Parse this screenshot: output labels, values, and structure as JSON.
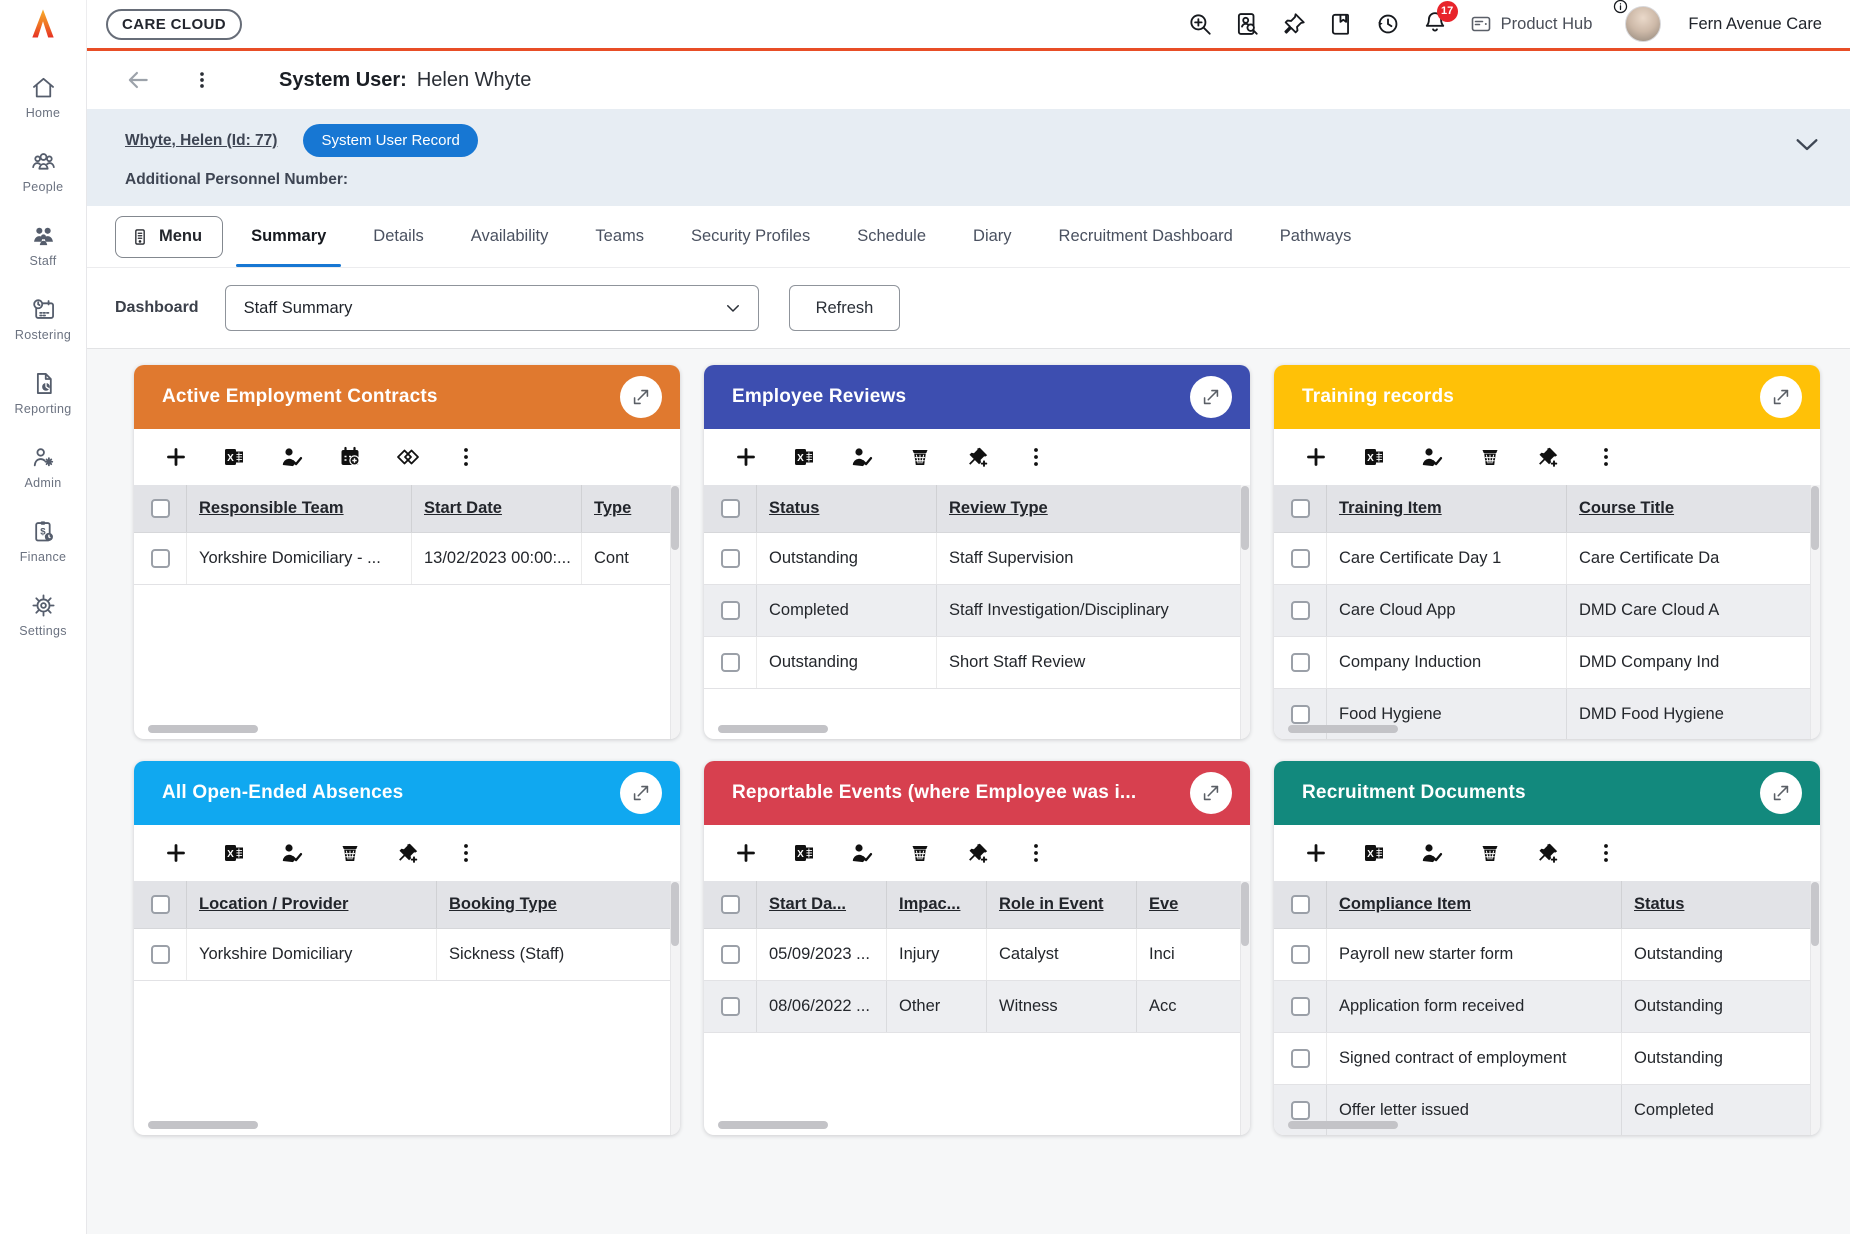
{
  "topbar": {
    "brand": "CARE CLOUD",
    "notification_count": "17",
    "product_hub_label": "Product Hub",
    "account_name": "Fern Avenue Care",
    "icons": [
      "zoom-in",
      "person-record-search",
      "pin",
      "bookmark",
      "history",
      "notifications",
      "info"
    ]
  },
  "sidebar": {
    "items": [
      {
        "label": "Home",
        "icon": "home-icon"
      },
      {
        "label": "People",
        "icon": "people-icon"
      },
      {
        "label": "Staff",
        "icon": "staff-icon"
      },
      {
        "label": "Rostering",
        "icon": "rostering-icon"
      },
      {
        "label": "Reporting",
        "icon": "reporting-icon"
      },
      {
        "label": "Admin",
        "icon": "admin-icon"
      },
      {
        "label": "Finance",
        "icon": "finance-icon"
      },
      {
        "label": "Settings",
        "icon": "settings-icon"
      }
    ]
  },
  "page_header": {
    "title_label": "System User:",
    "title_value": "Helen Whyte"
  },
  "record_bar": {
    "link_text": "Whyte, Helen (Id: 77)",
    "badge_text": "System User Record",
    "field_label": "Additional Personnel Number:"
  },
  "tabs": {
    "menu_label": "Menu",
    "active_tab": "Summary",
    "items": [
      "Summary",
      "Details",
      "Availability",
      "Teams",
      "Security Profiles",
      "Schedule",
      "Diary",
      "Recruitment Dashboard",
      "Pathways"
    ]
  },
  "dashboard_bar": {
    "label": "Dashboard",
    "selected_value": "Staff Summary",
    "refresh_label": "Refresh"
  },
  "cards": [
    {
      "title": "Active Employment Contracts",
      "header_color": "#E0792F",
      "toolbar": [
        "add",
        "excel-export",
        "assign-person",
        "calendar-add",
        "tags",
        "more"
      ],
      "columns": [
        "Responsible Team",
        "Start Date",
        "Type"
      ],
      "rows": [
        [
          "Yorkshire Domiciliary - ...",
          "13/02/2023 00:00:...",
          "Cont"
        ]
      ]
    },
    {
      "title": "Employee Reviews",
      "header_color": "#3D4EB0",
      "toolbar": [
        "add",
        "excel-export",
        "assign-person",
        "delete",
        "pin-add",
        "more"
      ],
      "columns": [
        "Status",
        "Review Type"
      ],
      "rows": [
        [
          "Outstanding",
          "Staff Supervision"
        ],
        [
          "Completed",
          "Staff Investigation/Disciplinary"
        ],
        [
          "Outstanding",
          "Short Staff Review"
        ]
      ]
    },
    {
      "title": "Training records",
      "header_color": "#FFC107",
      "toolbar": [
        "add",
        "excel-export",
        "assign-person",
        "delete",
        "pin-add",
        "more"
      ],
      "columns": [
        "Training Item",
        "Course Title"
      ],
      "rows": [
        [
          "Care Certificate Day 1",
          "Care Certificate Da"
        ],
        [
          "Care Cloud App",
          "DMD Care Cloud A"
        ],
        [
          "Company Induction",
          "DMD Company Ind"
        ],
        [
          "Food Hygiene",
          "DMD Food Hygiene"
        ]
      ]
    },
    {
      "title": "All Open-Ended Absences",
      "header_color": "#10A8F0",
      "toolbar": [
        "add",
        "excel-export",
        "assign-person",
        "delete",
        "pin-add",
        "more"
      ],
      "columns": [
        "Location / Provider",
        "Booking Type"
      ],
      "rows": [
        [
          "Yorkshire Domiciliary",
          "Sickness (Staff)"
        ]
      ]
    },
    {
      "title": "Reportable Events (where Employee was i...",
      "header_color": "#D7404F",
      "toolbar": [
        "add",
        "excel-export",
        "assign-person",
        "delete",
        "pin-add",
        "more"
      ],
      "columns": [
        "Start Da...",
        "Impac...",
        "Role in Event",
        "Eve"
      ],
      "rows": [
        [
          "05/09/2023 ...",
          "Injury",
          "Catalyst",
          "Inci"
        ],
        [
          "08/06/2022 ...",
          "Other",
          "Witness",
          "Acc"
        ]
      ]
    },
    {
      "title": "Recruitment Documents",
      "header_color": "#12897D",
      "toolbar": [
        "add",
        "excel-export",
        "assign-person",
        "delete",
        "pin-add",
        "more"
      ],
      "columns": [
        "Compliance Item",
        "Status"
      ],
      "rows": [
        [
          "Payroll new starter form",
          "Outstanding"
        ],
        [
          "Application form received",
          "Outstanding"
        ],
        [
          "Signed contract of employment",
          "Outstanding"
        ],
        [
          "Offer letter issued",
          "Completed"
        ]
      ]
    }
  ]
}
